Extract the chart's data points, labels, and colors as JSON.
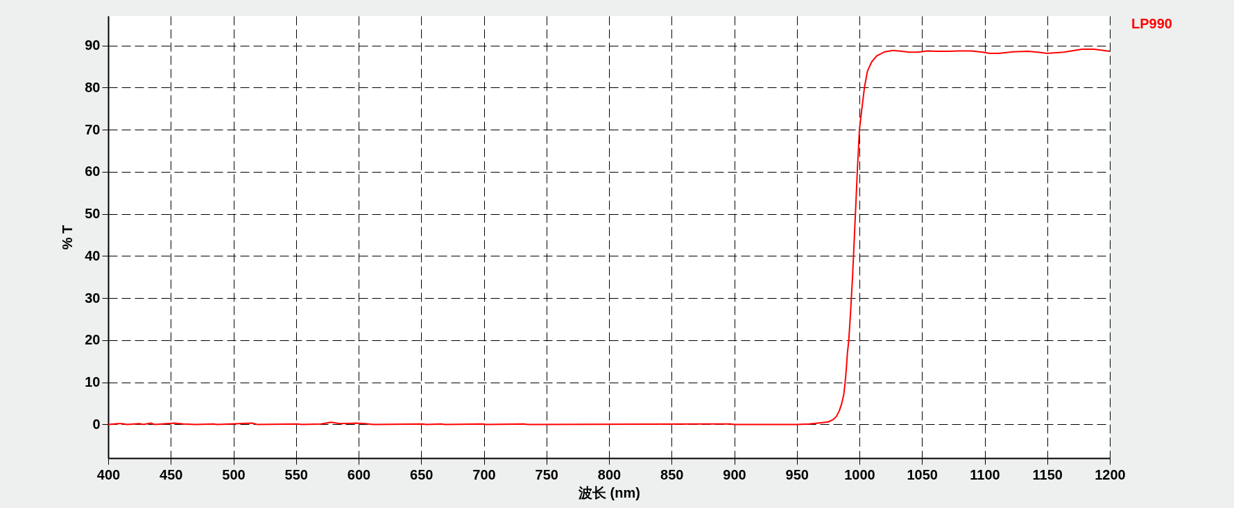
{
  "chart_data": {
    "type": "line",
    "xlabel": "波长 (nm)",
    "ylabel": "% T",
    "x": [
      400,
      408,
      411,
      415,
      425,
      428,
      434,
      437,
      453,
      460,
      470,
      484,
      487,
      515,
      519,
      551,
      555,
      570,
      578,
      585,
      598,
      605,
      612,
      651,
      654,
      666,
      669,
      699,
      702,
      732,
      735,
      893,
      897,
      900,
      950,
      960,
      969.6,
      975.1,
      978.8,
      981.6,
      984,
      985.8,
      987.5,
      988.6,
      989.5,
      990.4,
      991.5,
      993,
      994.5,
      996.8,
      998.3,
      1000,
      1001.8,
      1004,
      1006.4,
      1009.8,
      1013.8,
      1020.3,
      1026.7,
      1034,
      1039.6,
      1047,
      1054.3,
      1061.7,
      1070.9,
      1080,
      1089,
      1098.5,
      1104,
      1111.4,
      1122.5,
      1135,
      1144.6,
      1150,
      1163.3,
      1177.8,
      1187.4,
      1200
    ],
    "series": [
      {
        "name": "LP990",
        "color": "#ff0000",
        "values": [
          0,
          0.2,
          0.2,
          0,
          0.2,
          0,
          0.3,
          0,
          0.3,
          0.1,
          0,
          0.1,
          0,
          0.3,
          0,
          0.1,
          0,
          0.1,
          0.5,
          0.2,
          0.3,
          0.2,
          0,
          0.1,
          0,
          0.1,
          0,
          0.1,
          0,
          0.1,
          0,
          0.1,
          0.1,
          0,
          0,
          0.1,
          0.4,
          0.6,
          1.1,
          1.9,
          3.3,
          4.9,
          7.1,
          10,
          13.1,
          16.9,
          20,
          27,
          35,
          50,
          60,
          70,
          74.6,
          80,
          83.9,
          86.1,
          87.5,
          88.5,
          88.8,
          88.6,
          88.4,
          88.4,
          88.7,
          88.6,
          88.6,
          88.7,
          88.7,
          88.4,
          88.1,
          88.1,
          88.5,
          88.6,
          88.3,
          88.1,
          88.4,
          89.1,
          89.1,
          88.6
        ]
      }
    ],
    "xlim": [
      400,
      1200
    ],
    "ylim": [
      -8,
      97
    ],
    "xticks": [
      400,
      450,
      500,
      550,
      600,
      650,
      700,
      750,
      800,
      850,
      900,
      950,
      1000,
      1050,
      1100,
      1150,
      1200
    ],
    "yticks": [
      0,
      10,
      20,
      30,
      40,
      50,
      60,
      70,
      80,
      90
    ],
    "grid": true,
    "legend": "top right",
    "line_style": "solid"
  }
}
